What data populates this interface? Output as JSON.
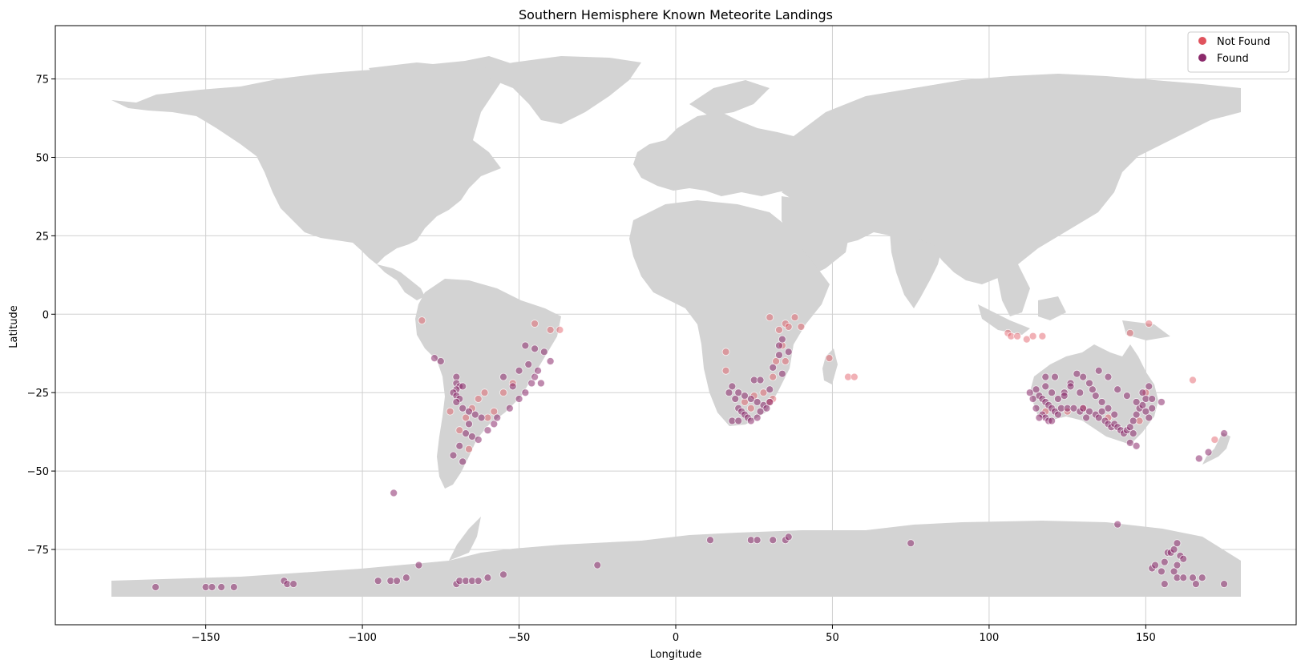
{
  "chart_data": {
    "type": "scatter",
    "title": "Southern Hemisphere Known Meteorite Landings",
    "xlabel": "Longitude",
    "ylabel": "Latitude",
    "xlim": [
      -198,
      198
    ],
    "ylim": [
      -99,
      92
    ],
    "xticks": [
      -150,
      -100,
      -50,
      0,
      50,
      100,
      150
    ],
    "yticks": [
      75,
      50,
      25,
      0,
      -25,
      -50,
      -75
    ],
    "grid": true,
    "legend_position": "top-right",
    "background_map": "world-land-lightgray",
    "colors": {
      "land": "#d3d3d3",
      "grid": "#d0d0d0",
      "not_found": "#e0535d",
      "found": "#8b2a6b"
    },
    "series": [
      {
        "name": "Not Found",
        "color": "#e0535d",
        "points": [
          [
            -81,
            -2
          ],
          [
            -45,
            -3
          ],
          [
            -40,
            -5
          ],
          [
            -37,
            -5
          ],
          [
            -52,
            -22
          ],
          [
            -55,
            -25
          ],
          [
            -58,
            -31
          ],
          [
            -60,
            -33
          ],
          [
            -63,
            -27
          ],
          [
            -65,
            -30
          ],
          [
            -67,
            -33
          ],
          [
            -61,
            -25
          ],
          [
            -72,
            -31
          ],
          [
            -69,
            -37
          ],
          [
            -66,
            -43
          ],
          [
            30,
            -1
          ],
          [
            35,
            -3
          ],
          [
            38,
            -1
          ],
          [
            33,
            -5
          ],
          [
            36,
            -4
          ],
          [
            40,
            -4
          ],
          [
            34,
            -10
          ],
          [
            32,
            -15
          ],
          [
            35,
            -15
          ],
          [
            49,
            -14
          ],
          [
            31,
            -20
          ],
          [
            28,
            -25
          ],
          [
            31,
            -27
          ],
          [
            30,
            -28
          ],
          [
            25,
            -26
          ],
          [
            22,
            -28
          ],
          [
            24,
            -30
          ],
          [
            16,
            -12
          ],
          [
            16,
            -18
          ],
          [
            55,
            -20
          ],
          [
            57,
            -20
          ],
          [
            106,
            -6
          ],
          [
            107,
            -7
          ],
          [
            109,
            -7
          ],
          [
            112,
            -8
          ],
          [
            114,
            -7
          ],
          [
            117,
            -7
          ],
          [
            145,
            -6
          ],
          [
            151,
            -3
          ],
          [
            165,
            -21
          ],
          [
            172,
            -40
          ],
          [
            125,
            -31
          ],
          [
            130,
            -30
          ],
          [
            138,
            -33
          ],
          [
            118,
            -31
          ],
          [
            150,
            -25
          ],
          [
            148,
            -34
          ]
        ]
      },
      {
        "name": "Found",
        "color": "#8b2a6b",
        "points": [
          [
            -77,
            -14
          ],
          [
            -75,
            -15
          ],
          [
            -70,
            -20
          ],
          [
            -70,
            -22
          ],
          [
            -69,
            -23
          ],
          [
            -70,
            -24
          ],
          [
            -71,
            -25
          ],
          [
            -70,
            -26
          ],
          [
            -69,
            -27
          ],
          [
            -68,
            -23
          ],
          [
            -70,
            -28
          ],
          [
            -68,
            -30
          ],
          [
            -66,
            -31
          ],
          [
            -64,
            -32
          ],
          [
            -62,
            -33
          ],
          [
            -66,
            -35
          ],
          [
            -67,
            -38
          ],
          [
            -65,
            -39
          ],
          [
            -63,
            -40
          ],
          [
            -69,
            -42
          ],
          [
            -71,
            -45
          ],
          [
            -68,
            -47
          ],
          [
            -58,
            -35
          ],
          [
            -57,
            -33
          ],
          [
            -60,
            -37
          ],
          [
            -53,
            -30
          ],
          [
            -50,
            -27
          ],
          [
            -48,
            -25
          ],
          [
            -46,
            -22
          ],
          [
            -45,
            -20
          ],
          [
            -43,
            -22
          ],
          [
            -47,
            -16
          ],
          [
            -50,
            -18
          ],
          [
            -55,
            -20
          ],
          [
            -48,
            -10
          ],
          [
            -45,
            -11
          ],
          [
            -42,
            -12
          ],
          [
            -40,
            -15
          ],
          [
            -44,
            -18
          ],
          [
            -52,
            -23
          ],
          [
            -90,
            -57
          ],
          [
            18,
            -23
          ],
          [
            17,
            -25
          ],
          [
            19,
            -27
          ],
          [
            20,
            -30
          ],
          [
            21,
            -31
          ],
          [
            22,
            -32
          ],
          [
            23,
            -33
          ],
          [
            18,
            -34
          ],
          [
            20,
            -34
          ],
          [
            24,
            -34
          ],
          [
            26,
            -33
          ],
          [
            27,
            -31
          ],
          [
            28,
            -29
          ],
          [
            26,
            -28
          ],
          [
            24,
            -27
          ],
          [
            22,
            -26
          ],
          [
            20,
            -25
          ],
          [
            29,
            -30
          ],
          [
            30,
            -28
          ],
          [
            25,
            -21
          ],
          [
            27,
            -21
          ],
          [
            33,
            -13
          ],
          [
            33,
            -10
          ],
          [
            34,
            -8
          ],
          [
            36,
            -12
          ],
          [
            31,
            -17
          ],
          [
            34,
            -19
          ],
          [
            30,
            -24
          ],
          [
            115,
            -24
          ],
          [
            116,
            -26
          ],
          [
            117,
            -27
          ],
          [
            118,
            -28
          ],
          [
            119,
            -29
          ],
          [
            120,
            -30
          ],
          [
            121,
            -31
          ],
          [
            122,
            -32
          ],
          [
            123,
            -30
          ],
          [
            117,
            -32
          ],
          [
            118,
            -33
          ],
          [
            119,
            -34
          ],
          [
            120,
            -34
          ],
          [
            116,
            -33
          ],
          [
            115,
            -30
          ],
          [
            114,
            -27
          ],
          [
            125,
            -30
          ],
          [
            127,
            -30
          ],
          [
            129,
            -31
          ],
          [
            130,
            -30
          ],
          [
            132,
            -31
          ],
          [
            134,
            -32
          ],
          [
            135,
            -33
          ],
          [
            137,
            -34
          ],
          [
            138,
            -35
          ],
          [
            139,
            -36
          ],
          [
            140,
            -35
          ],
          [
            141,
            -36
          ],
          [
            142,
            -37
          ],
          [
            143,
            -38
          ],
          [
            144,
            -37
          ],
          [
            145,
            -36
          ],
          [
            146,
            -34
          ],
          [
            147,
            -32
          ],
          [
            148,
            -30
          ],
          [
            149,
            -29
          ],
          [
            150,
            -31
          ],
          [
            151,
            -33
          ],
          [
            152,
            -30
          ],
          [
            146,
            -38
          ],
          [
            140,
            -32
          ],
          [
            138,
            -30
          ],
          [
            136,
            -28
          ],
          [
            134,
            -26
          ],
          [
            133,
            -24
          ],
          [
            132,
            -22
          ],
          [
            130,
            -20
          ],
          [
            128,
            -19
          ],
          [
            126,
            -22
          ],
          [
            124,
            -25
          ],
          [
            122,
            -27
          ],
          [
            120,
            -25
          ],
          [
            118,
            -23
          ],
          [
            121,
            -20
          ],
          [
            135,
            -18
          ],
          [
            138,
            -20
          ],
          [
            141,
            -24
          ],
          [
            144,
            -26
          ],
          [
            147,
            -28
          ],
          [
            149,
            -25
          ],
          [
            151,
            -23
          ],
          [
            150,
            -27
          ],
          [
            145,
            -41
          ],
          [
            147,
            -42
          ],
          [
            136,
            -31
          ],
          [
            131,
            -33
          ],
          [
            124,
            -26
          ],
          [
            129,
            -25
          ],
          [
            126,
            -23
          ],
          [
            118,
            -20
          ],
          [
            113,
            -25
          ],
          [
            155,
            -28
          ],
          [
            152,
            -27
          ],
          [
            141,
            -67
          ],
          [
            167,
            -46
          ],
          [
            170,
            -44
          ],
          [
            175,
            -38
          ],
          [
            -166,
            -87
          ],
          [
            -150,
            -87
          ],
          [
            -148,
            -87
          ],
          [
            -145,
            -87
          ],
          [
            -141,
            -87
          ],
          [
            -125,
            -85
          ],
          [
            -124,
            -86
          ],
          [
            -122,
            -86
          ],
          [
            -95,
            -85
          ],
          [
            -91,
            -85
          ],
          [
            -89,
            -85
          ],
          [
            -86,
            -84
          ],
          [
            -82,
            -80
          ],
          [
            -70,
            -86
          ],
          [
            -69,
            -85
          ],
          [
            -67,
            -85
          ],
          [
            -65,
            -85
          ],
          [
            -63,
            -85
          ],
          [
            -60,
            -84
          ],
          [
            -55,
            -83
          ],
          [
            -25,
            -80
          ],
          [
            11,
            -72
          ],
          [
            24,
            -72
          ],
          [
            26,
            -72
          ],
          [
            31,
            -72
          ],
          [
            35,
            -72
          ],
          [
            36,
            -71
          ],
          [
            75,
            -73
          ],
          [
            152,
            -81
          ],
          [
            153,
            -80
          ],
          [
            155,
            -82
          ],
          [
            156,
            -79
          ],
          [
            157,
            -76
          ],
          [
            158,
            -76
          ],
          [
            159,
            -75
          ],
          [
            160,
            -73
          ],
          [
            161,
            -77
          ],
          [
            162,
            -78
          ],
          [
            160,
            -80
          ],
          [
            159,
            -82
          ],
          [
            160,
            -84
          ],
          [
            162,
            -84
          ],
          [
            165,
            -84
          ],
          [
            168,
            -84
          ],
          [
            166,
            -86
          ],
          [
            156,
            -86
          ],
          [
            175,
            -86
          ]
        ]
      }
    ]
  }
}
